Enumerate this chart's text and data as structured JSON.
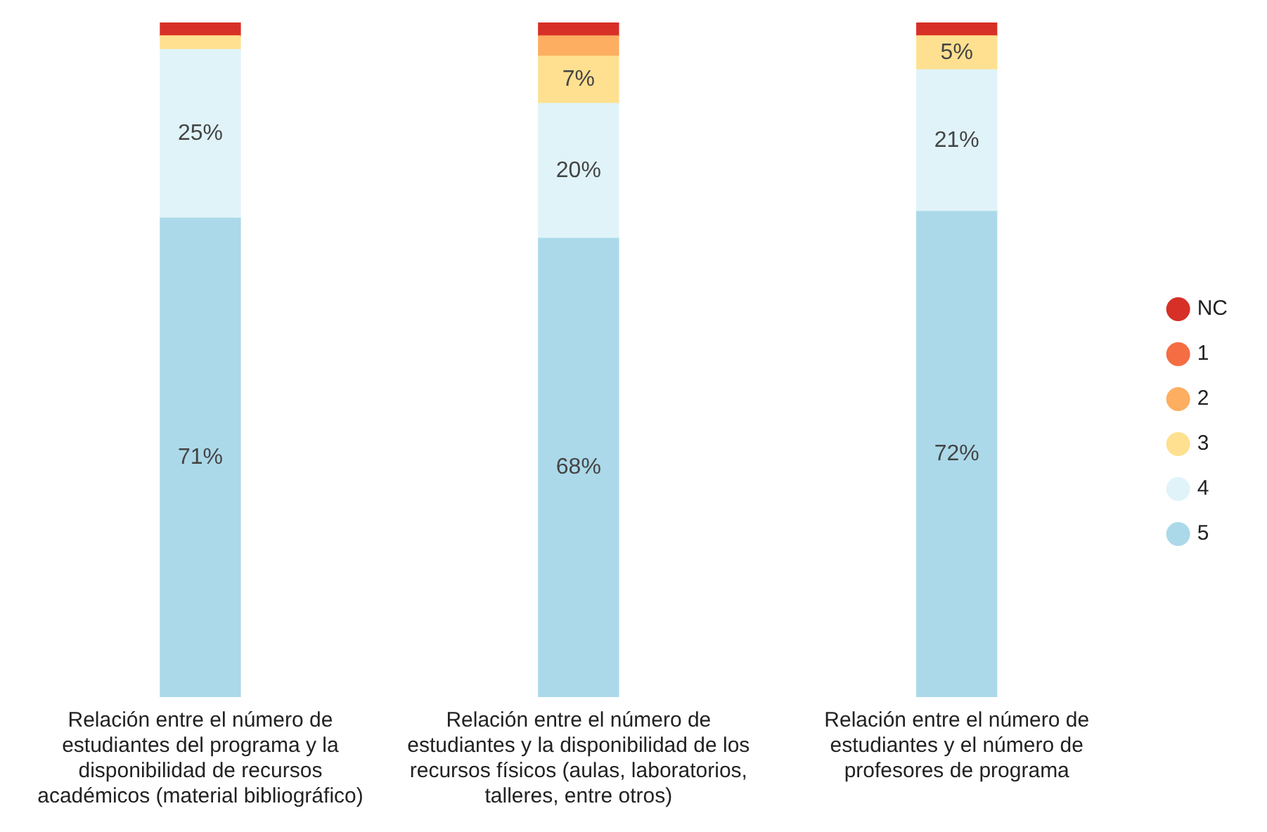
{
  "chart_data": {
    "type": "bar",
    "stacked": true,
    "categories": [
      "Relación entre el número de estudiantes del programa y la disponibilidad de recursos académicos (material bibliográfico)",
      "Relación entre el número de estudiantes y la disponibilidad de los recursos físicos (aulas, laboratorios, talleres, entre otros)",
      "Relación entre el número de estudiantes y el número de profesores de programa"
    ],
    "series": [
      {
        "name": "5",
        "color": "#abd9e9",
        "values": [
          71,
          68,
          72
        ],
        "value_labels": [
          "71%",
          "68%",
          "72%"
        ]
      },
      {
        "name": "4",
        "color": "#e0f3f8",
        "values": [
          25,
          20,
          21
        ],
        "value_labels": [
          "25%",
          "20%",
          "21%"
        ]
      },
      {
        "name": "3",
        "color": "#fee090",
        "values": [
          2,
          7,
          5
        ],
        "value_labels": [
          null,
          "7%",
          "5%"
        ]
      },
      {
        "name": "2",
        "color": "#fdae61",
        "values": [
          0,
          3,
          0
        ],
        "value_labels": [
          null,
          null,
          null
        ]
      },
      {
        "name": "1",
        "color": "#f46d43",
        "values": [
          0,
          0,
          0
        ],
        "value_labels": [
          null,
          null,
          null
        ]
      },
      {
        "name": "NC",
        "color": "#d73027",
        "values": [
          2,
          2,
          2
        ],
        "value_labels": [
          null,
          null,
          null
        ]
      }
    ],
    "ylim": [
      0,
      100
    ],
    "tick_labels": "x",
    "grid": false,
    "legend": "right"
  }
}
